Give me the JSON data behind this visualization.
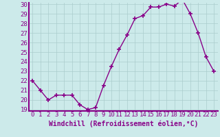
{
  "x": [
    0,
    1,
    2,
    3,
    4,
    5,
    6,
    7,
    8,
    9,
    10,
    11,
    12,
    13,
    14,
    15,
    16,
    17,
    18,
    19,
    20,
    21,
    22,
    23
  ],
  "y": [
    22.0,
    21.0,
    20.0,
    20.5,
    20.5,
    20.5,
    19.5,
    19.0,
    19.2,
    21.5,
    23.5,
    25.3,
    26.8,
    28.5,
    28.8,
    29.7,
    29.7,
    30.0,
    29.8,
    30.5,
    29.0,
    27.0,
    24.5,
    23.0
  ],
  "line_color": "#880088",
  "marker": "+",
  "bg_color": "#cceaea",
  "grid_color": "#aacccc",
  "axis_border_color": "#880088",
  "xlabel": "Windchill (Refroidissement éolien,°C)",
  "xlabel_color": "#880088",
  "ylim": [
    19,
    30
  ],
  "yticks": [
    19,
    20,
    21,
    22,
    23,
    24,
    25,
    26,
    27,
    28,
    29,
    30
  ],
  "xticks": [
    0,
    1,
    2,
    3,
    4,
    5,
    6,
    7,
    8,
    9,
    10,
    11,
    12,
    13,
    14,
    15,
    16,
    17,
    18,
    19,
    20,
    21,
    22,
    23
  ],
  "tick_fontsize": 6.5,
  "xlabel_fontsize": 7,
  "tick_color": "#880088"
}
